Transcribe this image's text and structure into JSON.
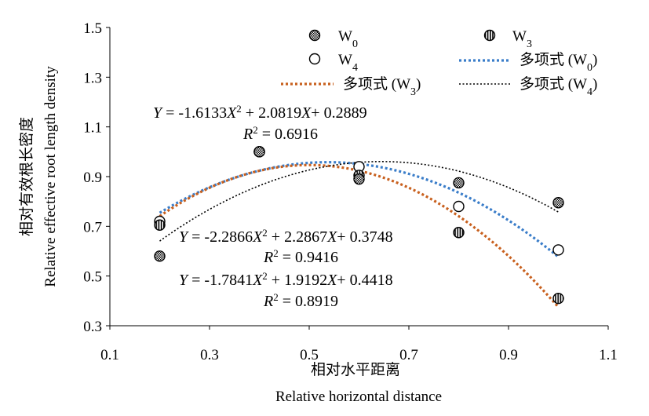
{
  "chart_data": {
    "type": "scatter",
    "x_axis": {
      "label_zh": "相对水平距离",
      "label_en": "Relative horizontal distance",
      "range": [
        0.1,
        1.1
      ],
      "ticks": [
        "0.1",
        "0.3",
        "0.5",
        "0.7",
        "0.9",
        "1.1"
      ]
    },
    "y_axis": {
      "label_zh": "相对有效根长密度",
      "label_en": "Relative effective root length density",
      "range": [
        0.3,
        1.5
      ],
      "ticks": [
        "0.3",
        "0.5",
        "0.7",
        "0.9",
        "1.1",
        "1.3",
        "1.5"
      ]
    },
    "grid": false,
    "legend_position": "top",
    "series": [
      {
        "name": "W",
        "subscript": "0",
        "marker": "crosshatch-circle",
        "x": [
          0.2,
          0.4,
          0.6,
          0.8,
          1.0
        ],
        "y": [
          0.58,
          1.0,
          0.89,
          0.875,
          0.795
        ]
      },
      {
        "name": "W",
        "subscript": "3",
        "marker": "striped-circle",
        "x": [
          0.2,
          0.4,
          0.6,
          0.8,
          1.0
        ],
        "y": [
          0.705,
          1.0,
          0.905,
          0.675,
          0.41
        ]
      },
      {
        "name": "W",
        "subscript": "4",
        "marker": "open-circle",
        "x": [
          0.2,
          0.4,
          0.6,
          0.8,
          1.0
        ],
        "y": [
          0.72,
          1.0,
          0.94,
          0.78,
          0.605
        ]
      }
    ],
    "trendlines": [
      {
        "name": "多项式 (W",
        "subscript": "0",
        "suffix": ")",
        "color": "#3a7dc9",
        "style": "dotted-bold",
        "coef": [
          -1.7841,
          1.9192,
          0.4418
        ],
        "equation_parts": {
          "a": "-1.7841",
          "b": "1.9192",
          "c": "0.4418"
        },
        "r2": "0.8919"
      },
      {
        "name": "多项式 (W",
        "subscript": "3",
        "suffix": ")",
        "color": "#c8601e",
        "style": "dotted-bold",
        "coef": [
          -2.2866,
          2.2867,
          0.3748
        ],
        "equation_parts": {
          "a": "-2.2866",
          "b": "2.2867",
          "c": "0.3748"
        },
        "r2": "0.9416"
      },
      {
        "name": "多项式 (W",
        "subscript": "4",
        "suffix": ")",
        "color": "#000000",
        "style": "dotted-thin",
        "coef": [
          -1.6133,
          2.0819,
          0.2889
        ],
        "equation_parts": {
          "a": "-1.6133",
          "b": "2.0819",
          "c": "0.2889"
        },
        "r2": "0.6916"
      }
    ],
    "annotations": {
      "y_prefix": "Y",
      "eq_mid1": " = ",
      "x_var": "X",
      "plus": "+ ",
      "r2_label": "R",
      "r2_eq": " = "
    }
  }
}
